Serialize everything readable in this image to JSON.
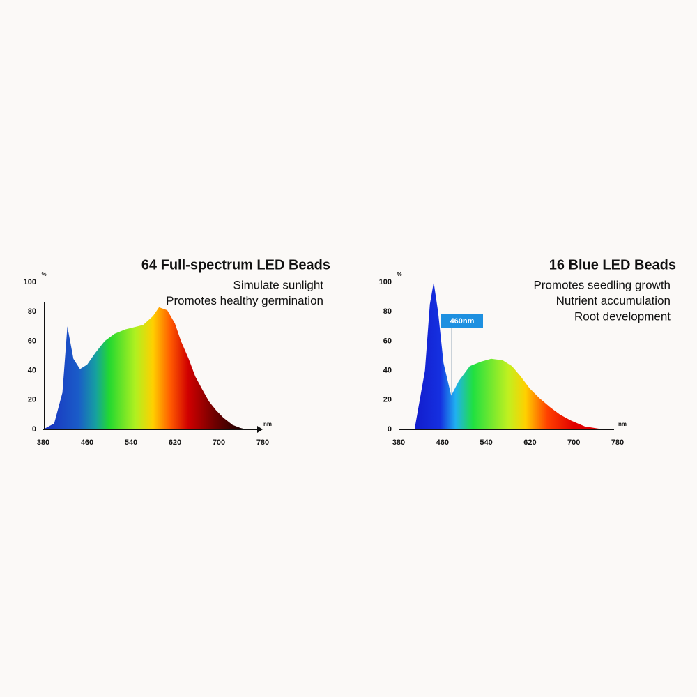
{
  "chart_data": [
    {
      "type": "area",
      "title": "64 Full-spectrum LED Beads",
      "annotations": [
        "Simulate sunlight",
        "Promotes healthy germination"
      ],
      "y_label": "%",
      "x_label": "nm",
      "x": [
        380,
        400,
        415,
        424,
        435,
        447,
        460,
        475,
        492,
        510,
        530,
        562,
        580,
        591,
        606,
        620,
        631,
        645,
        657,
        670,
        682,
        695,
        708,
        725,
        739,
        750
      ],
      "values": [
        0,
        4,
        25,
        70,
        48,
        41,
        44,
        52,
        60,
        65,
        68,
        71,
        77,
        83,
        81,
        72,
        60,
        48,
        36,
        27,
        19,
        13,
        8,
        3,
        1,
        0
      ],
      "xlim": [
        380,
        780
      ],
      "xticks": [
        380,
        460,
        540,
        620,
        700,
        780
      ],
      "ylim": [
        0,
        100
      ],
      "yticks": [
        0,
        20,
        40,
        60,
        80,
        100
      ]
    },
    {
      "type": "area",
      "title": "16 Blue LED Beads",
      "annotations": [
        "Promotes seedling growth",
        "Nutrient accumulation",
        "Root development"
      ],
      "callout": "460nm",
      "y_label": "%",
      "x_label": "nm",
      "x": [
        380,
        409,
        428,
        437,
        444,
        452,
        462,
        476,
        490,
        510,
        530,
        549,
        570,
        587,
        603,
        619,
        638,
        657,
        675,
        695,
        720,
        746,
        760
      ],
      "values": [
        0,
        0,
        40,
        85,
        100,
        80,
        45,
        23,
        33,
        43,
        46,
        48,
        47,
        43,
        36,
        28,
        21,
        15,
        10,
        6,
        2,
        0.5,
        0
      ],
      "xlim": [
        380,
        780
      ],
      "xticks": [
        380,
        460,
        540,
        620,
        700,
        780
      ],
      "ylim": [
        0,
        100
      ],
      "yticks": [
        0,
        20,
        40,
        60,
        80,
        100
      ]
    }
  ]
}
